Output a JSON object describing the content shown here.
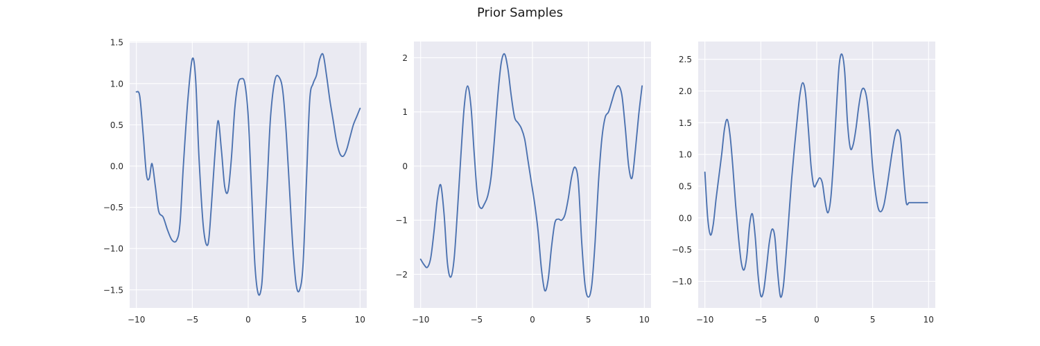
{
  "figure": {
    "title": "Prior Samples"
  },
  "colors": {
    "plot_background": "#eaeaf2",
    "grid": "#ffffff",
    "series": "#4c72b0"
  },
  "chart_data": [
    {
      "type": "line",
      "title": "",
      "xlabel": "",
      "ylabel": "",
      "grid": true,
      "xlim": [
        -10.6,
        10.6
      ],
      "ylim": [
        -1.72,
        1.51
      ],
      "xticks": [
        -10,
        -5,
        0,
        5,
        10
      ],
      "xtick_labels": [
        "−10",
        "−5",
        "0",
        "5",
        "10"
      ],
      "yticks": [
        -1.5,
        -1.0,
        -0.5,
        0.0,
        0.5,
        1.0,
        1.5
      ],
      "ytick_labels": [
        "−1.5",
        "−1.0",
        "−0.5",
        "0.0",
        "0.5",
        "1.0",
        "1.5"
      ],
      "series": [
        {
          "x": [
            -10,
            -9.7,
            -9.4,
            -9.1,
            -8.85,
            -8.6,
            -8.3,
            -8.0,
            -7.6,
            -7.2,
            -6.8,
            -6.4,
            -6.1,
            -5.8,
            -5.4,
            -5.0,
            -4.7,
            -4.4,
            -4.0,
            -3.6,
            -3.3,
            -3.0,
            -2.7,
            -2.4,
            -2.1,
            -1.8,
            -1.5,
            -1.2,
            -0.9,
            -0.6,
            -0.3,
            0.0,
            0.3,
            0.6,
            0.9,
            1.2,
            1.4,
            1.7,
            2.0,
            2.4,
            2.8,
            3.1,
            3.4,
            3.7,
            4.0,
            4.3,
            4.6,
            4.9,
            5.2,
            5.5,
            5.8,
            6.1,
            6.4,
            6.7,
            7.0,
            7.3,
            7.6,
            7.9,
            8.2,
            8.5,
            8.8,
            9.1,
            9.4,
            9.7,
            10.0
          ],
          "y": [
            0.9,
            0.85,
            0.4,
            -0.1,
            -0.15,
            0.03,
            -0.25,
            -0.55,
            -0.62,
            -0.78,
            -0.9,
            -0.9,
            -0.7,
            0.0,
            0.8,
            1.3,
            1.05,
            0.1,
            -0.75,
            -0.95,
            -0.5,
            0.1,
            0.55,
            0.2,
            -0.25,
            -0.3,
            0.1,
            0.7,
            1.0,
            1.06,
            1.0,
            0.6,
            -0.3,
            -1.2,
            -1.55,
            -1.45,
            -1.0,
            -0.2,
            0.6,
            1.05,
            1.07,
            0.9,
            0.4,
            -0.3,
            -1.0,
            -1.45,
            -1.5,
            -1.2,
            -0.2,
            0.8,
            1.0,
            1.1,
            1.3,
            1.35,
            1.1,
            0.8,
            0.55,
            0.3,
            0.15,
            0.12,
            0.2,
            0.35,
            0.5,
            0.6,
            0.7
          ]
        }
      ]
    },
    {
      "type": "line",
      "title": "",
      "xlabel": "",
      "ylabel": "",
      "grid": true,
      "xlim": [
        -10.6,
        10.6
      ],
      "ylim": [
        -2.62,
        2.3
      ],
      "xticks": [
        -10,
        -5,
        0,
        5,
        10
      ],
      "xtick_labels": [
        "−10",
        "−5",
        "0",
        "5",
        "10"
      ],
      "yticks": [
        -2,
        -1,
        0,
        1,
        2
      ],
      "ytick_labels": [
        "−2",
        "−1",
        "0",
        "1",
        "2"
      ],
      "series": [
        {
          "x": [
            -10,
            -9.7,
            -9.4,
            -9.1,
            -8.8,
            -8.5,
            -8.2,
            -7.9,
            -7.6,
            -7.3,
            -7.0,
            -6.7,
            -6.4,
            -6.1,
            -5.8,
            -5.5,
            -5.2,
            -4.9,
            -4.6,
            -4.3,
            -4.0,
            -3.7,
            -3.4,
            -3.1,
            -2.8,
            -2.5,
            -2.2,
            -1.9,
            -1.6,
            -1.3,
            -1.0,
            -0.7,
            -0.4,
            -0.1,
            0.2,
            0.5,
            0.8,
            1.1,
            1.4,
            1.7,
            2.0,
            2.3,
            2.6,
            2.9,
            3.2,
            3.5,
            3.8,
            4.1,
            4.4,
            4.7,
            5.0,
            5.3,
            5.6,
            5.9,
            6.2,
            6.5,
            6.8,
            7.1,
            7.4,
            7.7,
            8.0,
            8.3,
            8.6,
            8.9,
            9.2,
            9.5,
            9.8
          ],
          "y": [
            -1.72,
            -1.82,
            -1.87,
            -1.7,
            -1.2,
            -0.6,
            -0.35,
            -0.9,
            -1.8,
            -2.05,
            -1.7,
            -0.8,
            0.2,
            1.1,
            1.48,
            1.1,
            0.2,
            -0.6,
            -0.78,
            -0.7,
            -0.55,
            -0.2,
            0.5,
            1.3,
            1.9,
            2.07,
            1.8,
            1.3,
            0.9,
            0.8,
            0.7,
            0.5,
            0.1,
            -0.3,
            -0.7,
            -1.2,
            -1.9,
            -2.3,
            -2.1,
            -1.5,
            -1.05,
            -0.98,
            -1.0,
            -0.9,
            -0.6,
            -0.2,
            -0.02,
            -0.3,
            -1.4,
            -2.2,
            -2.42,
            -2.2,
            -1.4,
            -0.3,
            0.5,
            0.9,
            1.0,
            1.2,
            1.4,
            1.48,
            1.3,
            0.7,
            0.0,
            -0.22,
            0.3,
            0.95,
            1.48
          ]
        }
      ]
    },
    {
      "type": "line",
      "title": "",
      "xlabel": "",
      "ylabel": "",
      "grid": true,
      "xlim": [
        -10.6,
        10.6
      ],
      "ylim": [
        -1.42,
        2.78
      ],
      "xticks": [
        -10,
        -5,
        0,
        5,
        10
      ],
      "xtick_labels": [
        "−10",
        "−5",
        "0",
        "5",
        "10"
      ],
      "yticks": [
        -1.0,
        -0.5,
        0.0,
        0.5,
        1.0,
        1.5,
        2.0,
        2.5
      ],
      "ytick_labels": [
        "−1.0",
        "−0.5",
        "0.0",
        "0.5",
        "1.0",
        "1.5",
        "2.0",
        "2.5"
      ],
      "series": [
        {
          "x": [
            -10,
            -9.75,
            -9.5,
            -9.25,
            -9.0,
            -8.75,
            -8.5,
            -8.25,
            -8.0,
            -7.75,
            -7.5,
            -7.25,
            -7.0,
            -6.75,
            -6.5,
            -6.25,
            -6.0,
            -5.75,
            -5.5,
            -5.25,
            -5.0,
            -4.75,
            -4.5,
            -4.25,
            -4.0,
            -3.75,
            -3.5,
            -3.25,
            -3.0,
            -2.75,
            -2.5,
            -2.25,
            -2.0,
            -1.75,
            -1.5,
            -1.25,
            -1.0,
            -0.75,
            -0.5,
            -0.25,
            0.0,
            0.25,
            0.5,
            0.75,
            1.0,
            1.25,
            1.5,
            1.75,
            2.0,
            2.25,
            2.5,
            2.75,
            3.0,
            3.25,
            3.5,
            3.75,
            4.0,
            4.25,
            4.5,
            4.75,
            5.0,
            5.25,
            5.5,
            5.75,
            6.0,
            6.25,
            6.5,
            6.75,
            7.0,
            7.25,
            7.5,
            7.75,
            8.0,
            8.25,
            8.5,
            8.75,
            9.0,
            9.25,
            9.5,
            9.75,
            9.9
          ],
          "y": [
            0.72,
            0.0,
            -0.27,
            -0.1,
            0.3,
            0.65,
            1.0,
            1.4,
            1.55,
            1.3,
            0.8,
            0.2,
            -0.3,
            -0.7,
            -0.82,
            -0.6,
            -0.1,
            0.06,
            -0.3,
            -0.9,
            -1.23,
            -1.15,
            -0.8,
            -0.4,
            -0.18,
            -0.3,
            -0.85,
            -1.24,
            -1.1,
            -0.6,
            0.0,
            0.6,
            1.1,
            1.55,
            1.95,
            2.13,
            1.95,
            1.4,
            0.8,
            0.5,
            0.55,
            0.63,
            0.55,
            0.25,
            0.08,
            0.3,
            0.9,
            1.7,
            2.4,
            2.58,
            2.3,
            1.5,
            1.1,
            1.15,
            1.4,
            1.75,
            2.0,
            2.03,
            1.85,
            1.4,
            0.8,
            0.4,
            0.15,
            0.1,
            0.2,
            0.45,
            0.75,
            1.05,
            1.3,
            1.39,
            1.25,
            0.7,
            0.24,
            0.24,
            0.24,
            0.24,
            0.24,
            0.24,
            0.24,
            0.24,
            0.24
          ]
        }
      ]
    }
  ]
}
